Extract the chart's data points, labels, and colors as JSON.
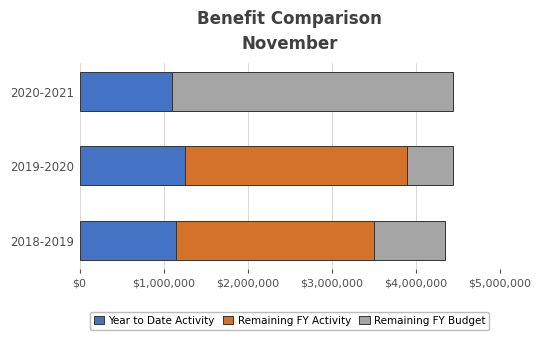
{
  "title": "Benefit Comparison\nNovember",
  "categories": [
    "2018-2019",
    "2019-2020",
    "2020-2021"
  ],
  "ytd_activity": [
    1150000,
    1250000,
    1100000
  ],
  "remaining_fy_activity": [
    2350000,
    2650000,
    0
  ],
  "remaining_fy_budget": [
    850000,
    550000,
    3350000
  ],
  "colors": {
    "ytd": "#4472C4",
    "remaining_fy": "#D4722A",
    "remaining_budget": "#A5A5A5"
  },
  "legend_labels": [
    "Year to Date Activity",
    "Remaining FY Activity",
    "Remaining FY Budget"
  ],
  "xlim": [
    0,
    5000000
  ],
  "xticks": [
    0,
    1000000,
    2000000,
    3000000,
    4000000,
    5000000
  ],
  "background_color": "#FFFFFF",
  "bar_edge_color": "#333333",
  "bar_linewidth": 0.7,
  "title_fontsize": 12,
  "tick_fontsize": 8,
  "ytick_fontsize": 8.5,
  "legend_fontsize": 7.5,
  "bar_height": 0.52
}
